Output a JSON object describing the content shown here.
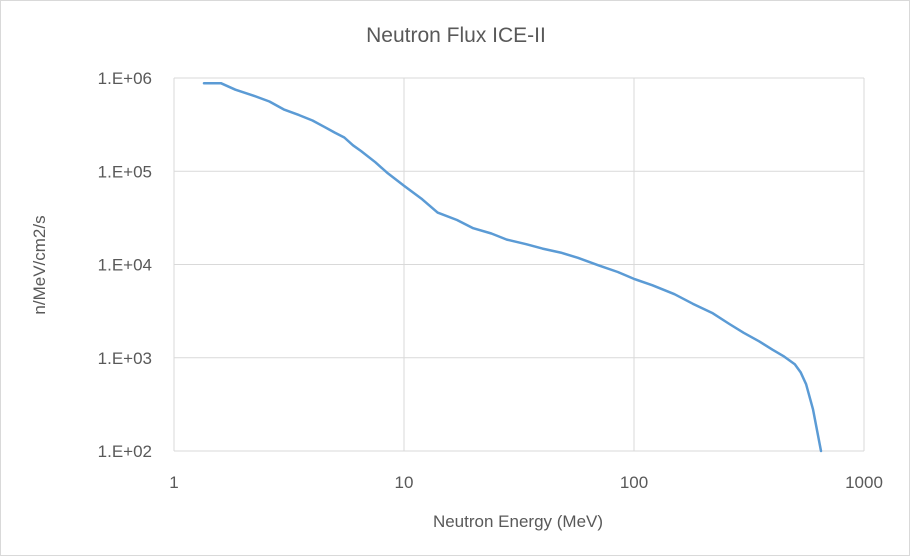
{
  "chart_data": {
    "type": "line",
    "title": "Neutron Flux ICE-II",
    "xlabel": "Neutron Energy (MeV)",
    "ylabel": "n/MeV/cm2/s",
    "x_scale": "log",
    "y_scale": "log",
    "xlim": [
      1,
      1000
    ],
    "ylim": [
      100,
      1000000
    ],
    "x_ticks": [
      1,
      10,
      100,
      1000
    ],
    "x_tick_labels": [
      "1",
      "10",
      "100",
      "1000"
    ],
    "y_ticks": [
      100,
      1000,
      10000,
      100000,
      1000000
    ],
    "y_tick_labels": [
      "1.E+02",
      "1.E+03",
      "1.E+04",
      "1.E+05",
      "1.E+06"
    ],
    "grid": true,
    "legend": "none",
    "series": [
      {
        "color": "#5b9bd5",
        "x": [
          1.35,
          1.6,
          1.85,
          2.2,
          2.6,
          3.0,
          3.5,
          4.0,
          4.5,
          5.0,
          5.5,
          6.0,
          6.5,
          7.5,
          8.5,
          10,
          12,
          14,
          17,
          20,
          24,
          28,
          34,
          40,
          48,
          57,
          70,
          85,
          100,
          120,
          150,
          180,
          220,
          260,
          300,
          350,
          400,
          450,
          500,
          530,
          560,
          600,
          650
        ],
        "y": [
          880000,
          880000,
          750000,
          650000,
          560000,
          460000,
          400000,
          350000,
          300000,
          260000,
          230000,
          190000,
          165000,
          125000,
          95000,
          70000,
          50000,
          36000,
          30000,
          24500,
          21500,
          18500,
          16500,
          14800,
          13400,
          11800,
          9800,
          8300,
          7000,
          6000,
          4800,
          3800,
          3000,
          2300,
          1850,
          1500,
          1220,
          1030,
          850,
          700,
          520,
          280,
          100
        ]
      }
    ]
  }
}
